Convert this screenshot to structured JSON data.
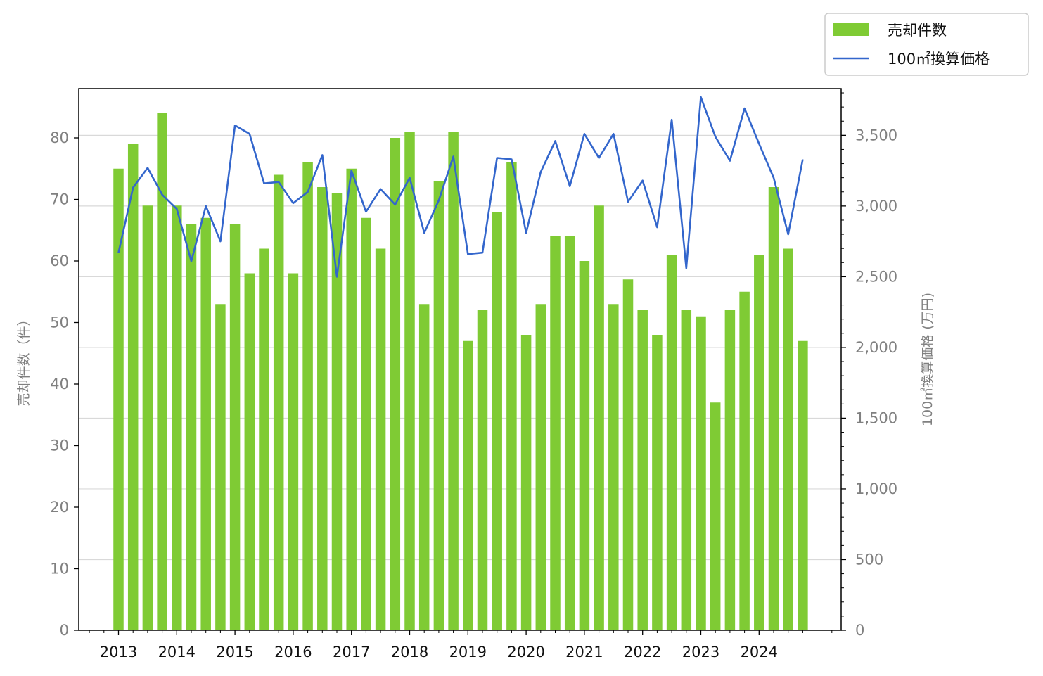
{
  "chart_data": {
    "type": "bar+line",
    "x_tick_labels": [
      "2013",
      "2014",
      "2015",
      "2016",
      "2017",
      "2018",
      "2019",
      "2020",
      "2021",
      "2022",
      "2023",
      "2024"
    ],
    "quarters_per_year": 4,
    "ylabel_left": "売却件数（件）",
    "ylabel_right": "100㎡換算価格 (万円)",
    "ylim_left": [
      0,
      88
    ],
    "ylim_right": [
      0,
      3830
    ],
    "yticks_left": [
      {
        "value": 0,
        "label": "0"
      },
      {
        "value": 10,
        "label": "10"
      },
      {
        "value": 20,
        "label": "20"
      },
      {
        "value": 30,
        "label": "30"
      },
      {
        "value": 40,
        "label": "40"
      },
      {
        "value": 50,
        "label": "50"
      },
      {
        "value": 60,
        "label": "60"
      },
      {
        "value": 70,
        "label": "70"
      },
      {
        "value": 80,
        "label": "80"
      }
    ],
    "yticks_right": [
      {
        "value": 0,
        "label": "0"
      },
      {
        "value": 500,
        "label": "500"
      },
      {
        "value": 1000,
        "label": "1,000"
      },
      {
        "value": 1500,
        "label": "1,500"
      },
      {
        "value": 2000,
        "label": "2,000"
      },
      {
        "value": 2500,
        "label": "2,500"
      },
      {
        "value": 3000,
        "label": "3,000"
      },
      {
        "value": 3500,
        "label": "3,500"
      }
    ],
    "grid": "horizontal (right axis)",
    "legend_position": "top-right, outside plot",
    "series": [
      {
        "name": "売却件数",
        "type": "bar",
        "axis": "left",
        "color": "#7fcb34",
        "values": [
          75,
          79,
          69,
          84,
          69,
          66,
          67,
          53,
          66,
          58,
          62,
          74,
          58,
          76,
          72,
          71,
          75,
          67,
          62,
          80,
          81,
          53,
          73,
          81,
          47,
          52,
          68,
          76,
          48,
          53,
          64,
          64,
          60,
          69,
          53,
          57,
          52,
          48,
          61,
          52,
          51,
          37,
          52,
          55,
          61,
          72,
          62,
          47
        ]
      },
      {
        "name": "100㎡換算価格",
        "type": "line",
        "axis": "right",
        "color": "#3366cc",
        "values": [
          2670,
          3130,
          3270,
          3080,
          2980,
          2610,
          3000,
          2750,
          3570,
          3510,
          3160,
          3170,
          3020,
          3100,
          3360,
          2500,
          3250,
          2960,
          3120,
          3010,
          3200,
          2810,
          3040,
          3350,
          2660,
          2670,
          3340,
          3330,
          2810,
          3240,
          3460,
          3140,
          3510,
          3340,
          3510,
          3030,
          3180,
          2850,
          3610,
          2560,
          3770,
          3490,
          3320,
          3690,
          3440,
          3200,
          2800,
          3330
        ]
      }
    ]
  }
}
